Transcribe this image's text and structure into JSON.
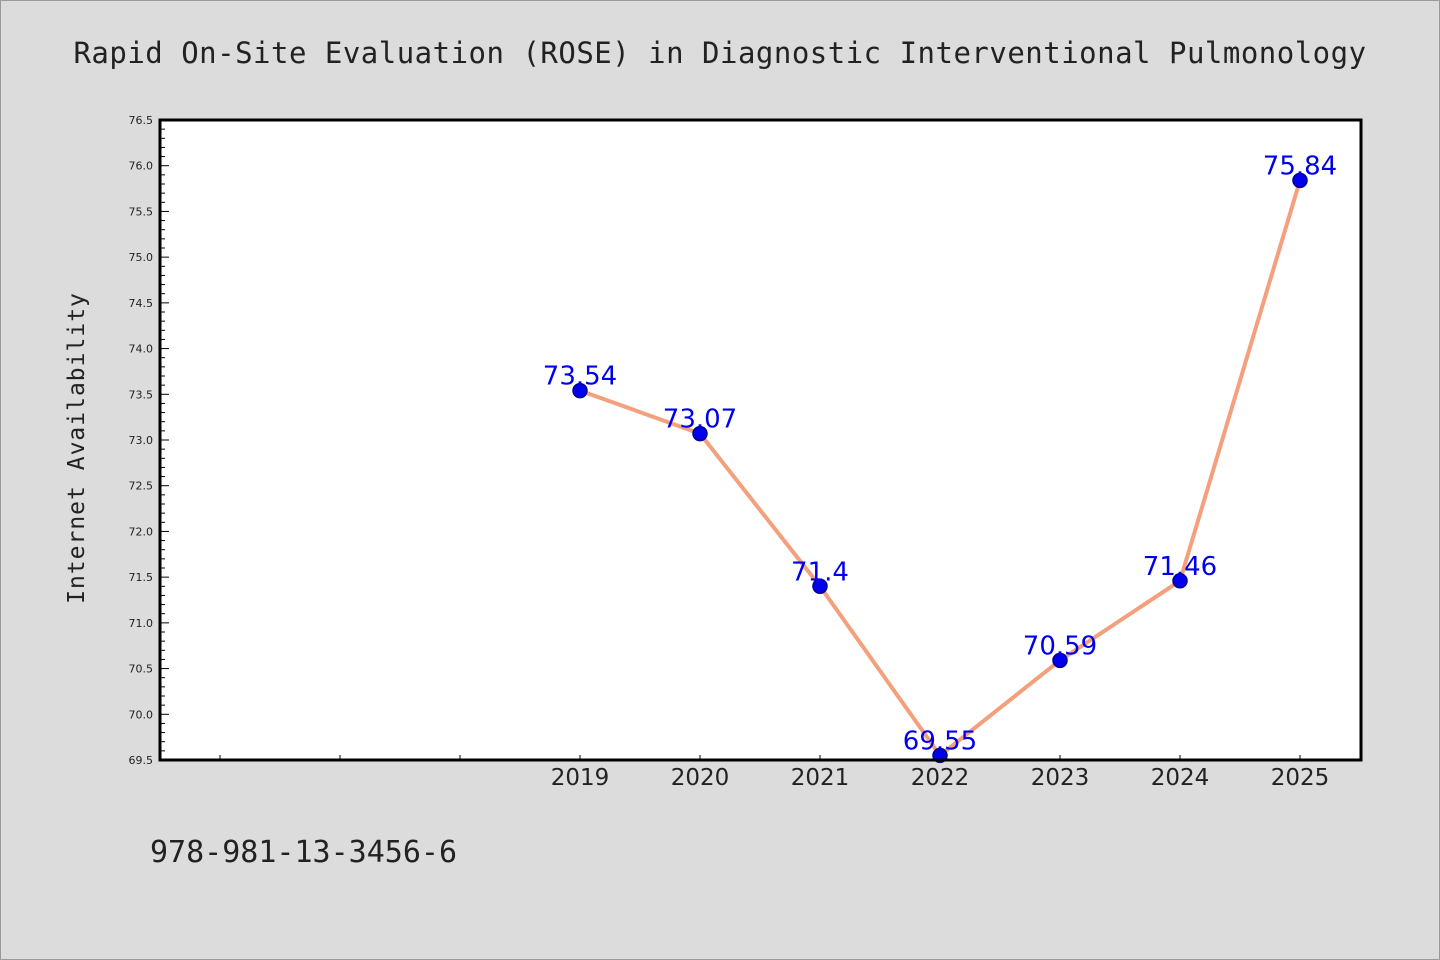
{
  "chart_data": {
    "type": "line",
    "title": "Rapid On-Site Evaluation (ROSE) in Diagnostic Interventional Pulmonology",
    "xlabel": "",
    "ylabel": "Internet Availability",
    "x": [
      "2019",
      "2020",
      "2021",
      "2022",
      "2023",
      "2024",
      "2025"
    ],
    "series": [
      {
        "values": [
          73.54,
          73.07,
          71.4,
          69.55,
          70.59,
          71.46,
          75.84
        ],
        "labels": [
          "73.54",
          "73.07",
          "71.4",
          "69.55",
          "70.59",
          "71.46",
          "75.84"
        ]
      }
    ],
    "yticks": [
      "69.5",
      "70.0",
      "70.5",
      "71.0",
      "71.5",
      "72.0",
      "72.5",
      "73.0",
      "73.5",
      "74.0",
      "74.5",
      "75.0",
      "75.5",
      "76.0",
      "76.5"
    ],
    "ylim": [
      69.5,
      76.5
    ],
    "x_slots": 10,
    "grid": false,
    "legend": "none",
    "colors": {
      "line": "#f4a07c",
      "marker": "#0000ee",
      "marker_edge": "#00008b",
      "label": "#0000ee",
      "background": "#dcdcdc",
      "plot_bg": "#ffffff"
    }
  },
  "footer": {
    "isbn": "978-981-13-3456-6"
  }
}
